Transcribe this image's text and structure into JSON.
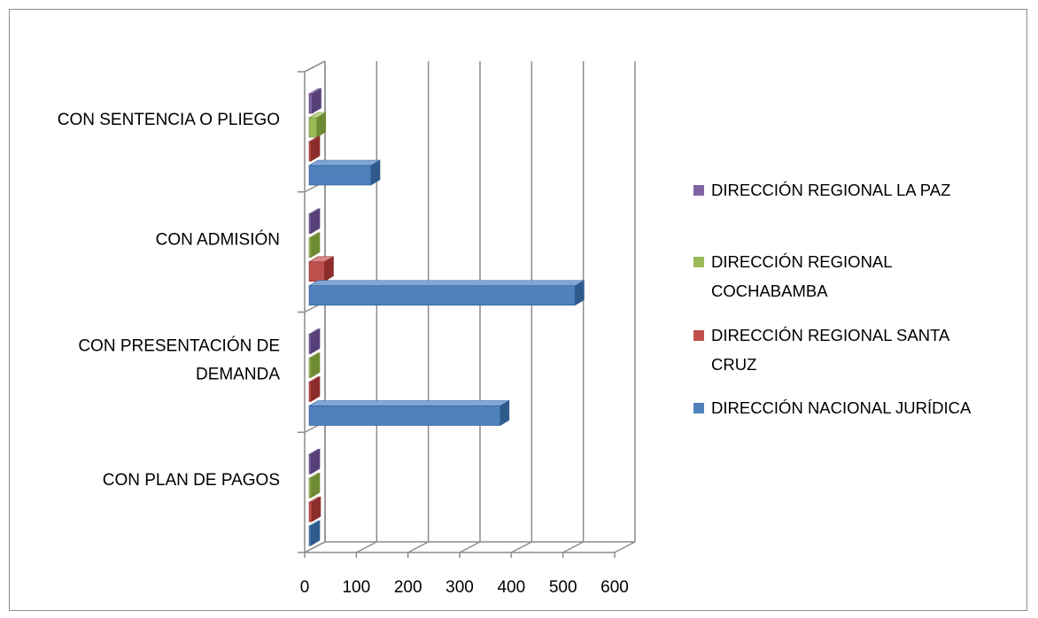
{
  "chart_data": {
    "type": "bar",
    "orientation": "horizontal",
    "style": "3d-clustered",
    "categories": [
      "CON PLAN DE PAGOS",
      "CON PRESENTACIÓN DE DEMANDA",
      "CON ADMISIÓN",
      "CON SENTENCIA O PLIEGO"
    ],
    "category_lines": [
      [
        "CON PLAN DE PAGOS"
      ],
      [
        "CON PRESENTACIÓN DE",
        "DEMANDA"
      ],
      [
        "CON ADMISIÓN"
      ],
      [
        "CON SENTENCIA O PLIEGO"
      ]
    ],
    "series": [
      {
        "name": "DIRECCIÓN NACIONAL JURÍDICA",
        "color": "#4F81BD",
        "top": "#7FA6D6",
        "side": "#2E5A8C",
        "values": [
          2,
          370,
          515,
          120
        ]
      },
      {
        "name": "DIRECCIÓN REGIONAL SANTA CRUZ",
        "color": "#C0504D",
        "top": "#D98584",
        "side": "#8B2D2A",
        "values": [
          5,
          2,
          30,
          2
        ]
      },
      {
        "name": "DIRECCIÓN REGIONAL COCHABAMBA",
        "color": "#9BBB59",
        "top": "#BCD68F",
        "side": "#6E8B34",
        "values": [
          2,
          2,
          2,
          15
        ]
      },
      {
        "name": "DIRECCIÓN REGIONAL LA PAZ",
        "color": "#8064A2",
        "top": "#A690C2",
        "side": "#573F78",
        "values": [
          2,
          2,
          2,
          6
        ]
      }
    ],
    "legend_lines": [
      [
        "DIRECCIÓN REGIONAL LA PAZ"
      ],
      [
        "DIRECCIÓN REGIONAL",
        "COCHABAMBA"
      ],
      [
        "DIRECCIÓN REGIONAL SANTA",
        "CRUZ"
      ],
      [
        "DIRECCIÓN NACIONAL JURÍDICA"
      ]
    ],
    "legend_order": [
      3,
      2,
      1,
      0
    ],
    "x_ticks": [
      "0",
      "100",
      "200",
      "300",
      "400",
      "500",
      "600"
    ],
    "xlim": [
      0,
      600
    ],
    "grid": true,
    "legend_position": "right",
    "title": "",
    "xlabel": "",
    "ylabel": ""
  }
}
